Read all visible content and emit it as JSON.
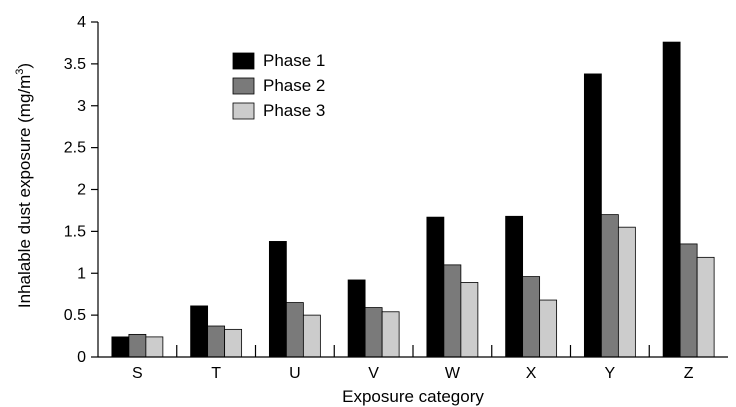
{
  "chart_data": {
    "type": "bar",
    "categories": [
      "S",
      "T",
      "U",
      "V",
      "W",
      "X",
      "Y",
      "Z"
    ],
    "series": [
      {
        "name": "Phase 1",
        "values": [
          0.24,
          0.61,
          1.38,
          0.92,
          1.67,
          1.68,
          3.38,
          3.76
        ],
        "color": "#000000"
      },
      {
        "name": "Phase 2",
        "values": [
          0.27,
          0.37,
          0.65,
          0.59,
          1.1,
          0.96,
          1.7,
          1.35
        ],
        "color": "#7a7a7a"
      },
      {
        "name": "Phase 3",
        "values": [
          0.24,
          0.33,
          0.5,
          0.54,
          0.89,
          0.68,
          1.55,
          1.19
        ],
        "color": "#cccccc"
      }
    ],
    "title": "",
    "xlabel": "Exposure category",
    "ylabel_main": "Inhalable dust exposure (mg/m",
    "ylabel_sup": "3",
    "ylabel_close": ")",
    "ylim": [
      0,
      4
    ],
    "yticks": [
      "0",
      "0.5",
      "1",
      "1.5",
      "2",
      "2.5",
      "3",
      "3.5",
      "4"
    ],
    "grid": false,
    "legend_position": "upper-left"
  }
}
